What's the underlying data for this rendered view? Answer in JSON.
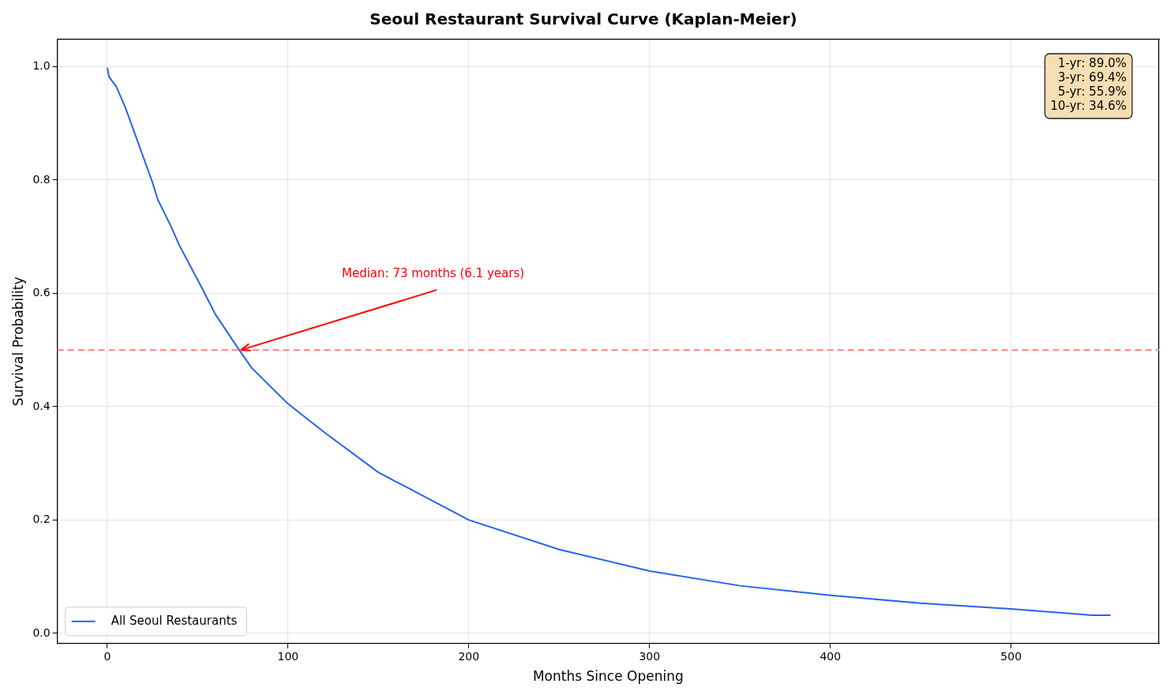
{
  "chart_data": {
    "type": "line",
    "title": "Seoul Restaurant Survival Curve (Kaplan-Meier)",
    "xlabel": "Months Since Opening",
    "ylabel": "Survival Probability",
    "x": [
      0,
      1,
      5,
      10,
      15,
      20,
      25,
      28,
      35,
      40,
      50,
      60,
      73,
      80,
      100,
      120,
      150,
      200,
      250,
      300,
      350,
      400,
      450,
      500,
      545,
      555
    ],
    "series": [
      {
        "name": "All Seoul Restaurants",
        "color": "#2563eb",
        "values": [
          0.998,
          0.982,
          0.965,
          0.928,
          0.884,
          0.84,
          0.796,
          0.765,
          0.72,
          0.684,
          0.624,
          0.562,
          0.5,
          0.468,
          0.405,
          0.355,
          0.284,
          0.2,
          0.148,
          0.11,
          0.084,
          0.067,
          0.053,
          0.043,
          0.032,
          0.032
        ]
      }
    ],
    "xlim": [
      -27.6,
      581.8
    ],
    "ylim": [
      -0.018,
      1.048
    ],
    "xticks": [
      0,
      100,
      200,
      300,
      400,
      500
    ],
    "yticks": [
      {
        "value": 0,
        "label": "0.0"
      },
      {
        "value": 0.2,
        "label": "0.2"
      },
      {
        "value": 0.4,
        "label": "0.4"
      },
      {
        "value": 0.6,
        "label": "0.6"
      },
      {
        "value": 0.8,
        "label": "0.8"
      },
      {
        "value": 1,
        "label": "1.0"
      }
    ],
    "ref_lines": [
      {
        "axis": "y",
        "value": 0.5,
        "color": "#ff8080",
        "line_style": "dashed"
      }
    ],
    "annotations": [
      {
        "text": "Median: 73 months (6.1 years)",
        "x": 73,
        "y": 0.5
      },
      "1-yr: 89.0%\n3-yr: 69.4%\n5-yr: 55.9%\n10-yr: 34.6%"
    ],
    "grid": true,
    "legend": "bottom left",
    "marker": "none",
    "line_style": "solid"
  }
}
